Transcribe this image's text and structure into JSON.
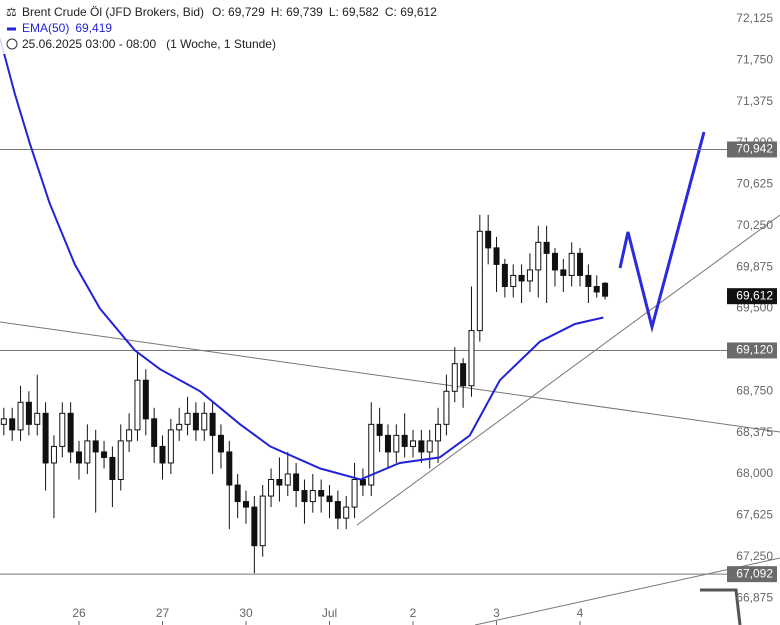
{
  "chart_data": {
    "type": "candlestick",
    "title": "Brent Crude Öl (JFD Brokers, Bid)",
    "ohlc_header": [
      "O: 69,729",
      "H: 69,739",
      "L: 69,582",
      "C: 69,612"
    ],
    "date_range": "25.06.2025 03:00 - 08:00",
    "period": "(1 Woche, 1 Stunde)",
    "xlim": [
      -0.946,
      7.76
    ],
    "ylim": [
      66.767,
      72.297
    ],
    "xticks": [
      {
        "value": 0,
        "label": "26"
      },
      {
        "value": 1,
        "label": "27"
      },
      {
        "value": 2,
        "label": "30"
      },
      {
        "value": 3,
        "label": "Jul"
      },
      {
        "value": 4,
        "label": "2"
      },
      {
        "value": 5,
        "label": "3"
      },
      {
        "value": 6,
        "label": "4"
      }
    ],
    "yticks": [
      {
        "value": 72.125,
        "label": "72,125"
      },
      {
        "value": 71.75,
        "label": "71,750"
      },
      {
        "value": 71.375,
        "label": "71,375"
      },
      {
        "value": 71.0,
        "label": "71,000"
      },
      {
        "value": 70.625,
        "label": "70,625"
      },
      {
        "value": 70.25,
        "label": "70,250"
      },
      {
        "value": 69.875,
        "label": "69,875"
      },
      {
        "value": 69.5,
        "label": "69,500"
      },
      {
        "value": 68.75,
        "label": "68,750"
      },
      {
        "value": 68.375,
        "label": "68,375"
      },
      {
        "value": 68.0,
        "label": "68,000"
      },
      {
        "value": 67.625,
        "label": "67,625"
      },
      {
        "value": 67.25,
        "label": "67,250"
      },
      {
        "value": 66.875,
        "label": "66,875"
      }
    ],
    "up_color": "#ffffff",
    "down_color": "#111111",
    "x": [
      -0.9,
      -0.8,
      -0.7,
      -0.6,
      -0.5,
      -0.4,
      -0.3,
      -0.2,
      -0.1,
      0,
      0.1,
      0.2,
      0.3,
      0.4,
      0.5,
      0.6,
      0.7,
      0.8,
      0.9,
      1,
      1.1,
      1.2,
      1.3,
      1.4,
      1.5,
      1.6,
      1.7,
      1.8,
      1.9,
      2,
      2.1,
      2.2,
      2.3,
      2.4,
      2.5,
      2.6,
      2.7,
      2.8,
      2.9,
      3,
      3.1,
      3.2,
      3.3,
      3.4,
      3.5,
      3.6,
      3.7,
      3.8,
      3.9,
      4,
      4.1,
      4.2,
      4.3,
      4.4,
      4.5,
      4.6,
      4.7,
      4.8,
      4.9,
      5,
      5.1,
      5.2,
      5.3,
      5.4,
      5.5,
      5.6,
      5.7,
      5.8,
      5.9,
      6,
      6.1,
      6.2,
      6.3
    ],
    "open": [
      68.45,
      68.5,
      68.4,
      68.65,
      68.45,
      68.55,
      68.1,
      68.25,
      68.55,
      68.2,
      68.1,
      68.3,
      68.2,
      68.15,
      67.95,
      68.3,
      68.4,
      68.85,
      68.5,
      68.25,
      68.1,
      68.4,
      68.45,
      68.55,
      68.4,
      68.55,
      68.35,
      68.2,
      67.9,
      67.75,
      67.7,
      67.35,
      67.8,
      67.95,
      67.9,
      68.0,
      67.85,
      67.75,
      67.85,
      67.8,
      67.75,
      67.6,
      67.7,
      67.95,
      67.9,
      68.45,
      68.35,
      68.2,
      68.35,
      68.25,
      68.3,
      68.2,
      68.3,
      68.45,
      68.75,
      69.0,
      68.8,
      69.3,
      70.2,
      70.05,
      69.9,
      69.7,
      69.8,
      69.75,
      69.85,
      70.1,
      70.0,
      69.85,
      69.8,
      70.0,
      69.8,
      69.7,
      69.729
    ],
    "high": [
      68.6,
      68.6,
      68.8,
      68.75,
      68.9,
      68.65,
      68.35,
      68.65,
      68.65,
      68.3,
      68.45,
      68.4,
      68.3,
      68.25,
      68.45,
      68.55,
      69.1,
      68.95,
      68.6,
      68.35,
      68.5,
      68.6,
      68.7,
      68.65,
      68.65,
      68.65,
      68.45,
      68.3,
      68.0,
      67.85,
      67.8,
      67.9,
      68.05,
      68.15,
      68.2,
      68.1,
      67.95,
      68.0,
      67.95,
      67.9,
      67.85,
      67.8,
      68.1,
      68.05,
      68.65,
      68.6,
      68.45,
      68.45,
      68.55,
      68.4,
      68.4,
      68.4,
      68.6,
      68.9,
      69.15,
      69.05,
      69.7,
      70.35,
      70.35,
      70.15,
      69.95,
      69.9,
      69.9,
      70.0,
      70.25,
      70.25,
      70.05,
      69.95,
      70.1,
      70.05,
      69.9,
      69.8,
      69.739
    ],
    "low": [
      68.35,
      68.3,
      68.3,
      68.35,
      68.35,
      67.85,
      67.6,
      68.15,
      68.1,
      67.95,
      68.0,
      67.65,
      68.05,
      67.7,
      67.85,
      68.2,
      68.3,
      68.35,
      68.1,
      67.95,
      68.0,
      68.3,
      68.35,
      68.3,
      68.3,
      68.0,
      68.05,
      67.5,
      67.6,
      67.55,
      67.1,
      67.25,
      67.7,
      67.75,
      67.8,
      67.7,
      67.55,
      67.65,
      67.65,
      67.6,
      67.5,
      67.5,
      67.6,
      67.8,
      67.8,
      68.2,
      68.05,
      68.1,
      68.15,
      68.15,
      68.1,
      68.05,
      68.1,
      68.35,
      68.65,
      68.6,
      68.7,
      69.2,
      69.9,
      69.65,
      69.6,
      69.6,
      69.55,
      69.65,
      69.6,
      69.55,
      69.7,
      69.65,
      69.7,
      69.7,
      69.55,
      69.6,
      69.582
    ],
    "close": [
      68.5,
      68.4,
      68.65,
      68.45,
      68.55,
      68.1,
      68.25,
      68.55,
      68.2,
      68.1,
      68.3,
      68.2,
      68.15,
      67.95,
      68.3,
      68.4,
      68.85,
      68.5,
      68.25,
      68.1,
      68.4,
      68.45,
      68.55,
      68.4,
      68.55,
      68.35,
      68.2,
      67.9,
      67.75,
      67.7,
      67.35,
      67.8,
      67.95,
      67.9,
      68.0,
      67.85,
      67.75,
      67.85,
      67.8,
      67.75,
      67.6,
      67.7,
      67.95,
      67.9,
      68.45,
      68.35,
      68.2,
      68.35,
      68.25,
      68.3,
      68.2,
      68.3,
      68.45,
      68.75,
      69.0,
      68.8,
      69.3,
      70.2,
      70.05,
      69.9,
      69.7,
      69.8,
      69.75,
      69.85,
      70.1,
      70.0,
      69.85,
      69.8,
      70.0,
      69.8,
      69.7,
      69.65,
      69.612
    ],
    "series": [
      {
        "name": "EMA(50)",
        "value_label": "69,419",
        "color": "#2222d8",
        "x": [
          -0.946,
          -0.77,
          -0.59,
          -0.35,
          -0.05,
          0.25,
          0.67,
          0.97,
          1.45,
          1.93,
          2.29,
          2.89,
          3.37,
          3.84,
          4.32,
          4.68,
          5.04,
          5.52,
          5.94,
          6.28
        ],
        "values": [
          71.95,
          71.45,
          71.0,
          70.45,
          69.9,
          69.5,
          69.12,
          68.95,
          68.75,
          68.45,
          68.25,
          68.05,
          67.95,
          68.1,
          68.15,
          68.35,
          68.85,
          69.2,
          69.36,
          69.419
        ]
      }
    ],
    "levels": [
      {
        "value": 70.942,
        "label": "70,942"
      },
      {
        "value": 69.12,
        "label": "69,120"
      },
      {
        "value": 67.092,
        "label": "67,092"
      }
    ],
    "last_price": {
      "value": 69.612,
      "label": "69,612"
    }
  }
}
